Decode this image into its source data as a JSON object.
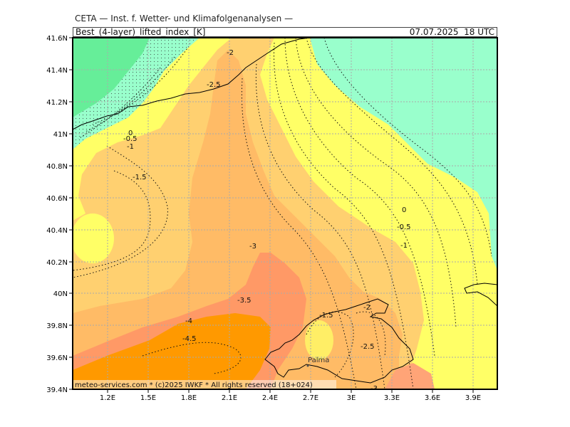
{
  "header": {
    "source": "CETA — Inst. f. Wetter- und Klimafolgenanalysen —",
    "field": "Best_(4-layer)_lifted_index_[K]",
    "valid_time": "07.07.2025  18 UTC"
  },
  "map": {
    "lon_ticks": [
      "1.2E",
      "1.5E",
      "1.8E",
      "2.1E",
      "2.4E",
      "2.7E",
      "3E",
      "3.3E",
      "3.6E",
      "3.9E"
    ],
    "lat_ticks": [
      "41.6N",
      "41.4N",
      "41.2N",
      "41N",
      "40.8N",
      "40.6N",
      "40.4N",
      "40.2N",
      "40N",
      "39.8N",
      "39.6N",
      "39.4N"
    ],
    "contour_labels": [
      "-2",
      "-2.5",
      "0",
      "-0.5",
      "-1",
      "-1.5",
      "0",
      "-0.5",
      "-1",
      "-3",
      "-3.5",
      "-4",
      "-4.5",
      "-1.5",
      "-2",
      "-2.5",
      "-3"
    ],
    "city": "Palma",
    "colors": {
      "deep_green": "#66ee99",
      "mint": "#99ffcc",
      "yellow": "#ffff66",
      "light_orange": "#ffd070",
      "tan": "#ffbb66",
      "salmon": "#ff9966",
      "orange": "#ff9900",
      "grid": "#aaaaaa"
    }
  },
  "footer": {
    "credit": "meteo-services.com  *  (c)2025 IWKF  *  All rights reserved  (18+024)"
  }
}
